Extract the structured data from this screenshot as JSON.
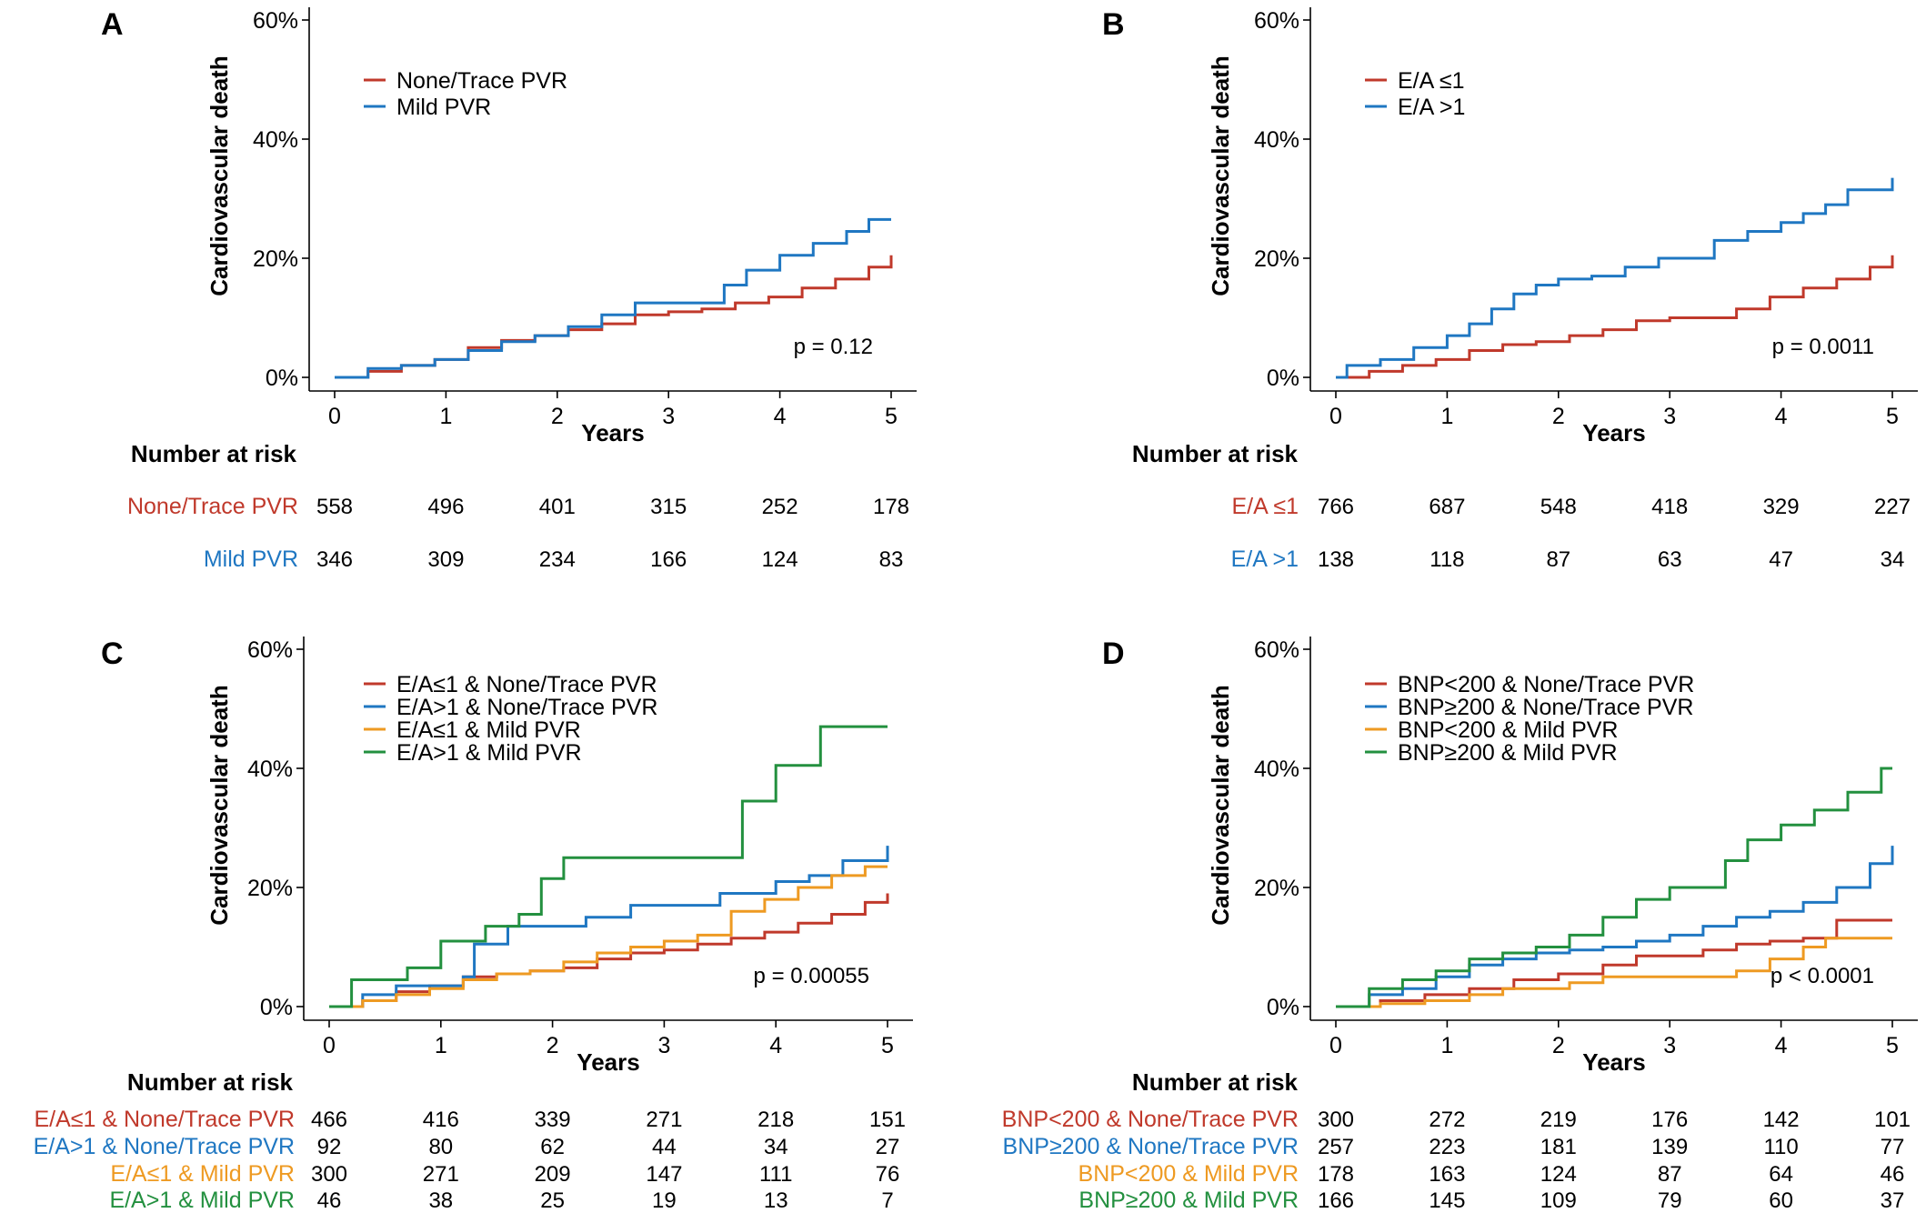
{
  "colors": {
    "red": "#c0392b",
    "blue": "#1f77c2",
    "orange": "#ee9a22",
    "green": "#23903f",
    "axis": "#000000"
  },
  "chart_data": [
    {
      "panel": "A",
      "type": "line",
      "ylabel": "Cardiovascular death",
      "xlabel": "Years",
      "ylim": [
        0,
        60
      ],
      "xlim": [
        0,
        5
      ],
      "yticks": [
        "0%",
        "20%",
        "40%",
        "60%"
      ],
      "xticks": [
        "0",
        "1",
        "2",
        "3",
        "4",
        "5"
      ],
      "legend_position": "top-left",
      "pvalue": "p = 0.12",
      "risk_title": "Number at risk",
      "series": [
        {
          "name": "None/Trace PVR",
          "color": "#c0392b",
          "x": [
            0,
            0.3,
            0.6,
            0.9,
            1.2,
            1.5,
            1.8,
            2.1,
            2.4,
            2.7,
            3.0,
            3.3,
            3.6,
            3.9,
            4.2,
            4.5,
            4.8,
            5.0
          ],
          "y": [
            0,
            1.0,
            2.0,
            3.0,
            5.0,
            6.2,
            7.0,
            8.0,
            9.0,
            10.5,
            11.0,
            11.5,
            12.5,
            13.5,
            15.0,
            16.5,
            18.5,
            20.5
          ],
          "risk": [
            "558",
            "496",
            "401",
            "315",
            "252",
            "178"
          ]
        },
        {
          "name": "Mild PVR",
          "color": "#1f77c2",
          "x": [
            0,
            0.3,
            0.6,
            0.9,
            1.2,
            1.5,
            1.8,
            2.1,
            2.4,
            2.7,
            3.0,
            3.3,
            3.5,
            3.7,
            4.0,
            4.3,
            4.6,
            4.8,
            5.0
          ],
          "y": [
            0,
            1.5,
            2.0,
            3.0,
            4.5,
            6.0,
            7.0,
            8.5,
            10.5,
            12.5,
            12.5,
            12.5,
            15.5,
            18.0,
            20.5,
            22.5,
            24.5,
            26.5,
            26.5
          ],
          "risk": [
            "346",
            "309",
            "234",
            "166",
            "124",
            "83"
          ]
        }
      ]
    },
    {
      "panel": "B",
      "type": "line",
      "ylabel": "Cardiovascular death",
      "xlabel": "Years",
      "ylim": [
        0,
        60
      ],
      "xlim": [
        0,
        5
      ],
      "yticks": [
        "0%",
        "20%",
        "40%",
        "60%"
      ],
      "xticks": [
        "0",
        "1",
        "2",
        "3",
        "4",
        "5"
      ],
      "legend_position": "top-left",
      "pvalue": "p = 0.0011",
      "risk_title": "Number at risk",
      "series": [
        {
          "name": "E/A ≤1",
          "color": "#c0392b",
          "x": [
            0,
            0.3,
            0.6,
            0.9,
            1.2,
            1.5,
            1.8,
            2.1,
            2.4,
            2.7,
            3.0,
            3.3,
            3.6,
            3.9,
            4.2,
            4.5,
            4.8,
            5.0
          ],
          "y": [
            0,
            1.0,
            2.0,
            3.0,
            4.5,
            5.5,
            6.0,
            7.0,
            8.0,
            9.5,
            10.0,
            10.0,
            11.5,
            13.5,
            15.0,
            16.5,
            18.5,
            20.5
          ],
          "risk": [
            "766",
            "687",
            "548",
            "418",
            "329",
            "227"
          ]
        },
        {
          "name": "E/A >1",
          "color": "#1f77c2",
          "x": [
            0,
            0.1,
            0.4,
            0.7,
            1.0,
            1.2,
            1.4,
            1.6,
            1.8,
            2.0,
            2.3,
            2.6,
            2.9,
            3.2,
            3.4,
            3.7,
            4.0,
            4.2,
            4.4,
            4.6,
            4.9,
            5.0
          ],
          "y": [
            0,
            2.0,
            3.0,
            5.0,
            7.0,
            9.0,
            11.5,
            14.0,
            15.5,
            16.5,
            17.0,
            18.5,
            20.0,
            20.0,
            23.0,
            24.5,
            26.0,
            27.5,
            29.0,
            31.5,
            31.5,
            33.5
          ],
          "risk": [
            "138",
            "118",
            "87",
            "63",
            "47",
            "34"
          ]
        }
      ]
    },
    {
      "panel": "C",
      "type": "line",
      "ylabel": "Cardiovascular death",
      "xlabel": "Years",
      "ylim": [
        0,
        60
      ],
      "xlim": [
        0,
        5
      ],
      "yticks": [
        "0%",
        "20%",
        "40%",
        "60%"
      ],
      "xticks": [
        "0",
        "1",
        "2",
        "3",
        "4",
        "5"
      ],
      "legend_position": "top-left",
      "pvalue": "p = 0.00055",
      "risk_title": "Number at risk",
      "series": [
        {
          "name": "E/A≤1 & None/Trace PVR",
          "color": "#c0392b",
          "x": [
            0,
            0.3,
            0.6,
            0.9,
            1.2,
            1.5,
            1.8,
            2.1,
            2.4,
            2.7,
            3.0,
            3.3,
            3.6,
            3.9,
            4.2,
            4.5,
            4.8,
            5.0
          ],
          "y": [
            0,
            1.0,
            2.5,
            3.5,
            5.0,
            5.5,
            6.0,
            6.5,
            8.0,
            9.0,
            9.5,
            10.5,
            11.5,
            12.5,
            14.0,
            15.5,
            17.5,
            19.0
          ],
          "risk": [
            "466",
            "416",
            "339",
            "271",
            "218",
            "151"
          ]
        },
        {
          "name": "E/A>1 & None/Trace PVR",
          "color": "#1f77c2",
          "x": [
            0,
            0.3,
            0.6,
            1.0,
            1.2,
            1.3,
            1.6,
            2.0,
            2.3,
            2.7,
            3.0,
            3.5,
            4.0,
            4.3,
            4.6,
            4.9,
            5.0
          ],
          "y": [
            0,
            2.0,
            3.5,
            3.5,
            5.0,
            10.5,
            13.5,
            13.5,
            15.0,
            17.0,
            17.0,
            19.0,
            21.0,
            22.0,
            24.5,
            24.5,
            27.0
          ],
          "risk": [
            "92",
            "80",
            "62",
            "44",
            "34",
            "27"
          ]
        },
        {
          "name": "E/A≤1 & Mild PVR",
          "color": "#ee9a22",
          "x": [
            0,
            0.3,
            0.6,
            0.9,
            1.2,
            1.5,
            1.8,
            2.1,
            2.4,
            2.7,
            3.0,
            3.3,
            3.6,
            3.9,
            4.2,
            4.5,
            4.8,
            5.0
          ],
          "y": [
            0,
            1.0,
            2.0,
            3.0,
            4.5,
            5.5,
            6.0,
            7.5,
            9.0,
            10.0,
            11.0,
            12.0,
            16.0,
            18.0,
            20.0,
            22.0,
            23.5,
            23.5
          ],
          "risk": [
            "300",
            "271",
            "209",
            "147",
            "111",
            "76"
          ]
        },
        {
          "name": "E/A>1 & Mild PVR",
          "color": "#23903f",
          "x": [
            0,
            0.2,
            0.5,
            0.7,
            1.0,
            1.4,
            1.7,
            1.9,
            2.1,
            2.4,
            3.4,
            3.7,
            4.0,
            4.4,
            5.0
          ],
          "y": [
            0,
            4.5,
            4.5,
            6.5,
            11.0,
            13.5,
            15.5,
            21.5,
            25.0,
            25.0,
            25.0,
            34.5,
            40.5,
            47.0,
            47.0
          ],
          "risk": [
            "46",
            "38",
            "25",
            "19",
            "13",
            "7"
          ]
        }
      ]
    },
    {
      "panel": "D",
      "type": "line",
      "ylabel": "Cardiovascular death",
      "xlabel": "Years",
      "ylim": [
        0,
        60
      ],
      "xlim": [
        0,
        5
      ],
      "yticks": [
        "0%",
        "20%",
        "40%",
        "60%"
      ],
      "xticks": [
        "0",
        "1",
        "2",
        "3",
        "4",
        "5"
      ],
      "legend_position": "top-left",
      "pvalue": "p < 0.0001",
      "risk_title": "Number at risk",
      "series": [
        {
          "name": "BNP<200 & None/Trace PVR",
          "color": "#c0392b",
          "x": [
            0,
            0.4,
            0.8,
            1.2,
            1.6,
            2.0,
            2.4,
            2.7,
            3.0,
            3.3,
            3.6,
            3.9,
            4.2,
            4.5,
            4.8,
            5.0
          ],
          "y": [
            0,
            1.0,
            2.0,
            3.0,
            4.5,
            5.5,
            7.0,
            8.5,
            8.5,
            9.5,
            10.5,
            11.0,
            11.5,
            14.5,
            14.5,
            14.5
          ],
          "risk": [
            "300",
            "272",
            "219",
            "176",
            "142",
            "101"
          ]
        },
        {
          "name": "BNP≥200 & None/Trace PVR",
          "color": "#1f77c2",
          "x": [
            0,
            0.3,
            0.6,
            0.9,
            1.2,
            1.5,
            1.8,
            2.1,
            2.4,
            2.7,
            3.0,
            3.3,
            3.6,
            3.9,
            4.2,
            4.5,
            4.8,
            5.0
          ],
          "y": [
            0,
            2.0,
            3.0,
            5.0,
            7.0,
            8.0,
            9.0,
            9.5,
            10.0,
            11.0,
            12.0,
            13.5,
            15.0,
            16.0,
            17.5,
            20.0,
            24.0,
            27.0
          ],
          "risk": [
            "257",
            "223",
            "181",
            "139",
            "110",
            "77"
          ]
        },
        {
          "name": "BNP<200 & Mild PVR",
          "color": "#ee9a22",
          "x": [
            0,
            0.4,
            0.8,
            1.2,
            1.5,
            1.8,
            2.1,
            2.4,
            2.7,
            3.0,
            3.3,
            3.6,
            3.9,
            4.2,
            4.4,
            5.0
          ],
          "y": [
            0,
            0.5,
            1.0,
            2.0,
            3.0,
            3.0,
            4.0,
            5.0,
            5.0,
            5.0,
            5.0,
            6.0,
            8.0,
            10.0,
            11.5,
            11.5
          ],
          "risk": [
            "178",
            "163",
            "124",
            "87",
            "64",
            "46"
          ]
        },
        {
          "name": "BNP≥200 & Mild PVR",
          "color": "#23903f",
          "x": [
            0,
            0.3,
            0.6,
            0.9,
            1.2,
            1.5,
            1.8,
            2.1,
            2.4,
            2.7,
            3.0,
            3.3,
            3.5,
            3.7,
            4.0,
            4.3,
            4.6,
            4.9,
            5.0
          ],
          "y": [
            0,
            3.0,
            4.5,
            6.0,
            8.0,
            9.0,
            10.0,
            12.0,
            15.0,
            18.0,
            20.0,
            20.0,
            24.5,
            28.0,
            30.5,
            33.0,
            36.0,
            40.0,
            40.0
          ],
          "risk": [
            "166",
            "145",
            "109",
            "79",
            "60",
            "37"
          ]
        }
      ]
    }
  ]
}
